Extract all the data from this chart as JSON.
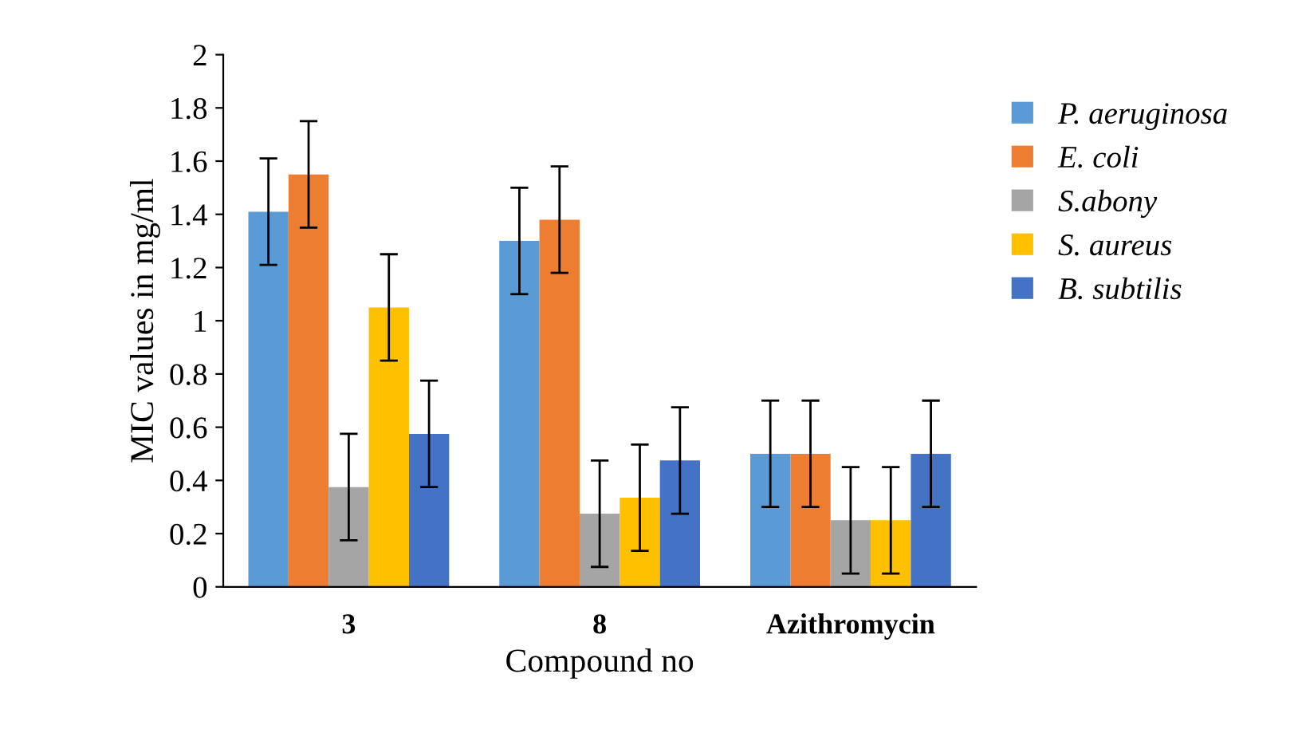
{
  "chart_data": {
    "type": "bar",
    "xlabel": "Compound no",
    "ylabel": "MIC values in mg/ml",
    "categories": [
      "3",
      "8",
      "Azithromycin"
    ],
    "series": [
      {
        "name": "P. aeruginosa",
        "color": "#5b9bd5",
        "values": [
          1.41,
          1.3,
          0.5
        ],
        "errors": [
          0.2,
          0.2,
          0.2
        ]
      },
      {
        "name": "E. coli",
        "color": "#ed7d31",
        "values": [
          1.55,
          1.38,
          0.5
        ],
        "errors": [
          0.2,
          0.2,
          0.2
        ]
      },
      {
        "name": "S.abony",
        "color": "#a5a5a5",
        "values": [
          0.375,
          0.275,
          0.25
        ],
        "errors": [
          0.2,
          0.2,
          0.2
        ]
      },
      {
        "name": "S. aureus",
        "color": "#ffc000",
        "values": [
          1.05,
          0.335,
          0.25
        ],
        "errors": [
          0.2,
          0.2,
          0.2
        ]
      },
      {
        "name": "B. subtilis",
        "color": "#4472c4",
        "values": [
          0.575,
          0.475,
          0.5
        ],
        "errors": [
          0.2,
          0.2,
          0.2
        ]
      }
    ],
    "ylim": [
      0,
      2
    ],
    "yticks": [
      0,
      0.2,
      0.4,
      0.6,
      0.8,
      1,
      1.2,
      1.4,
      1.6,
      1.8,
      2
    ],
    "grid": false,
    "legend": "right"
  }
}
